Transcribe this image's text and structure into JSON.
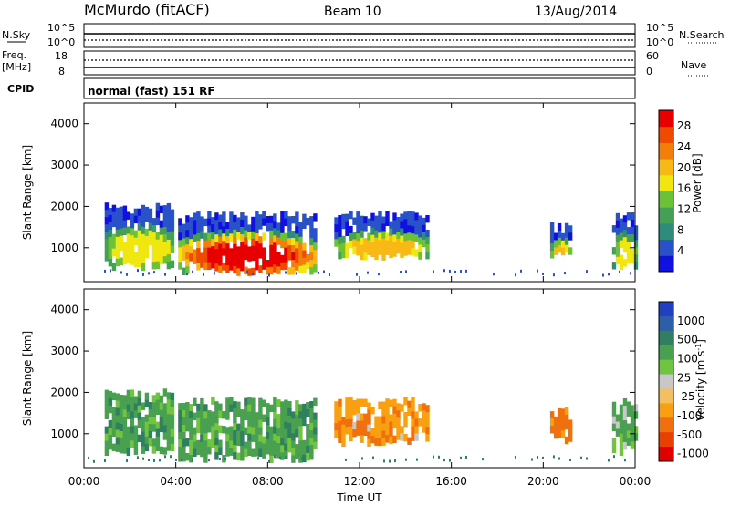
{
  "header": {
    "station": "McMurdo (fitACF)",
    "beam": "Beam 10",
    "date": "13/Aug/2014",
    "mode": "normal (fast) 151 RF"
  },
  "strip": {
    "nsky_label": "N.Sky",
    "nsky_ticks": [
      "10^5",
      "10^0"
    ],
    "nsearch_label": "N.Search",
    "nsearch_ticks": [
      "10^5",
      "10^0"
    ],
    "freq_label": "Freq.",
    "freq_unit": "[MHz]",
    "freq_ticks": [
      "18",
      "8"
    ],
    "nave_label": "Nave",
    "nave_ticks": [
      "60",
      "0"
    ],
    "cpid_label": "CPID"
  },
  "chart_data": [
    {
      "type": "heatmap",
      "name": "power",
      "ylabel": "Slant Range [km]",
      "ylim": [
        180,
        4500
      ],
      "yticks": [
        1000,
        2000,
        3000,
        4000
      ],
      "xlim": [
        0,
        24
      ],
      "colorbar": {
        "label": "Power [dB]",
        "range": [
          0,
          31
        ],
        "ticks": [
          4,
          8,
          12,
          16,
          20,
          24,
          28
        ],
        "colors": [
          "#1010e0",
          "#2a52c8",
          "#2d8c7a",
          "#44a056",
          "#6cc236",
          "#f0e610",
          "#f8b816",
          "#f47e0a",
          "#ee4a00",
          "#e80000"
        ]
      },
      "echo_regions": [
        {
          "t": [
            0.9,
            3.9
          ],
          "r": [
            600,
            2000
          ],
          "peak_dB": 18
        },
        {
          "t": [
            4.1,
            10.1
          ],
          "r": [
            500,
            1800
          ],
          "peak_dB": 31
        },
        {
          "t": [
            10.9,
            15.0
          ],
          "r": [
            900,
            1800
          ],
          "peak_dB": 20
        },
        {
          "t": [
            20.3,
            21.1
          ],
          "r": [
            900,
            1600
          ],
          "peak_dB": 20
        },
        {
          "t": [
            23.0,
            24.0
          ],
          "r": [
            600,
            1800
          ],
          "peak_dB": 16
        }
      ]
    },
    {
      "type": "heatmap",
      "name": "velocity",
      "ylabel": "Slant Range [km]",
      "ylim": [
        180,
        4500
      ],
      "yticks": [
        1000,
        2000,
        3000,
        4000
      ],
      "xlabel": "Time UT",
      "xlim": [
        0,
        24
      ],
      "xticks": [
        "00:00",
        "04:00",
        "08:00",
        "12:00",
        "16:00",
        "20:00",
        "00:00"
      ],
      "colorbar": {
        "label": "Velocity [m s^-1]",
        "ticks": [
          "1000",
          "500",
          "100",
          "25",
          "-25",
          "-100",
          "-500",
          "-1000"
        ],
        "colors": [
          "#2040c0",
          "#2d5fa8",
          "#2f7f60",
          "#48a050",
          "#70c440",
          "#c8c8c8",
          "#f2c060",
          "#f8a010",
          "#f07010",
          "#e84000",
          "#e00000"
        ]
      },
      "echo_regions": [
        {
          "t": [
            0.9,
            3.9
          ],
          "r": [
            600,
            2000
          ],
          "velocity": 60
        },
        {
          "t": [
            4.1,
            10.1
          ],
          "r": [
            500,
            1800
          ],
          "velocity": 60
        },
        {
          "t": [
            10.9,
            15.0
          ],
          "r": [
            900,
            1800
          ],
          "velocity": -80
        },
        {
          "t": [
            20.3,
            21.1
          ],
          "r": [
            900,
            1600
          ],
          "velocity": -150
        },
        {
          "t": [
            23.0,
            24.0
          ],
          "r": [
            600,
            1800
          ],
          "velocity": 40
        }
      ]
    }
  ]
}
